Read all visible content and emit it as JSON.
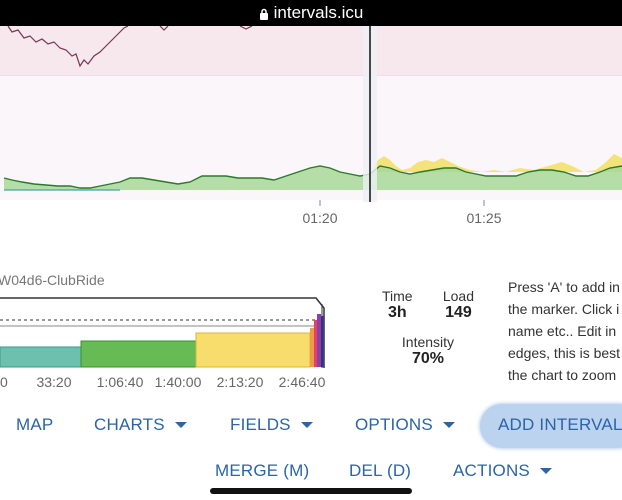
{
  "browser": {
    "url": "intervals.icu"
  },
  "chart": {
    "x_ticks": [
      "01:20",
      "01:25"
    ]
  },
  "activity": {
    "name": "W04d6-ClubRide",
    "mini_ticks": [
      "0",
      "33:20",
      "1:06:40",
      "1:40:00",
      "2:13:20",
      "2:46:40"
    ]
  },
  "stats": {
    "time_label": "Time",
    "time_value": "3h",
    "load_label": "Load",
    "load_value": "149",
    "intensity_label": "Intensity",
    "intensity_value": "70%"
  },
  "help_lines": [
    "Press 'A' to add in",
    "the marker. Click i",
    "name etc.. Edit in",
    "edges, this is best",
    "the chart to zoom"
  ],
  "toolbar": {
    "map": "MAP",
    "charts": "CHARTS",
    "fields": "FIELDS",
    "options": "OPTIONS",
    "add_interval": "ADD INTERVAL (",
    "merge": "MERGE (M)",
    "del": "DEL (D)",
    "actions": "ACTIONS"
  },
  "colors": {
    "accent": "#2b64a8",
    "hr_line": "#7a3654",
    "power_line": "#2a7a2a",
    "power_fill": "#a7d89a",
    "over_fill": "#f4e27a",
    "zone_teal": "#6cc0ae",
    "zone_green": "#66bb55",
    "zone_yellow": "#f8dc6c"
  }
}
